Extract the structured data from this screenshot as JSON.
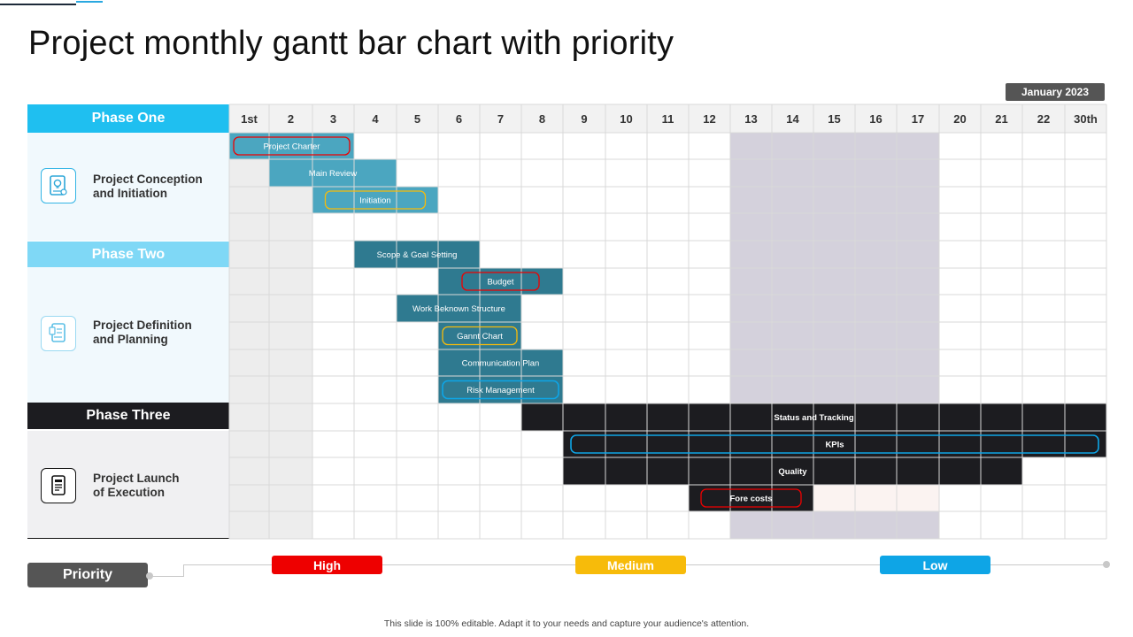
{
  "title": "Project monthly gantt bar chart with priority",
  "month_label": "January  2023",
  "footer": "This slide is 100% editable. Adapt it to your needs and capture your audience's attention.",
  "phases": [
    {
      "name": "Phase One",
      "label_line1": "Project Conception",
      "label_line2": "and Initiation",
      "header_color": "#1fbff0",
      "body_color": "#f1f9fd",
      "icon": "lightbulb-document-icon"
    },
    {
      "name": "Phase Two",
      "label_line1": "Project Definition",
      "label_line2": "and Planning",
      "header_color": "#7fd8f6",
      "body_color": "#f1f9fd",
      "icon": "planning-document-icon"
    },
    {
      "name": "Phase Three",
      "label_line1": "Project Launch",
      "label_line2": "of Execution",
      "header_color": "#1c1c20",
      "body_color": "#f0f0f2",
      "icon": "launch-document-icon"
    }
  ],
  "priority": {
    "label": "Priority",
    "levels": [
      {
        "name": "High",
        "color": "#ee0000"
      },
      {
        "name": "Medium",
        "color": "#f7bb0a"
      },
      {
        "name": "Low",
        "color": "#0ea5e6"
      }
    ]
  },
  "colors": {
    "grid_line": "#d9d9d9",
    "header_bg": "#f2f2f2",
    "shade_grey": "#ededed",
    "shade_lavender": "#d4d1dc",
    "shade_pink": "#fbf3f1"
  },
  "chart_data": {
    "type": "gantt",
    "title": "Project monthly gantt bar chart with priority",
    "period": "January 2023",
    "days": [
      "1st",
      "2",
      "3",
      "4",
      "5",
      "6",
      "7",
      "8",
      "9",
      "10",
      "11",
      "12",
      "13",
      "14",
      "15",
      "16",
      "17",
      "20",
      "21",
      "22",
      "30th"
    ],
    "rows": 15,
    "tasks": [
      {
        "name": "Project Charter",
        "row": 0,
        "start": "1st",
        "end": "3",
        "color": "#4ba6c0",
        "priority": "High"
      },
      {
        "name": "Main Review",
        "row": 1,
        "start": "2",
        "end": "4",
        "color": "#4ba6c0",
        "priority": null
      },
      {
        "name": "Initiation",
        "row": 2,
        "start": "3",
        "end": "5",
        "color": "#4ba6c0",
        "priority": "Medium"
      },
      {
        "name": "Scope & Goal Setting",
        "row": 4,
        "start": "4",
        "end": "6",
        "color": "#2f7a90",
        "priority": null
      },
      {
        "name": "Budget",
        "row": 5,
        "start": "6",
        "end": "8",
        "color": "#2f7a90",
        "priority": "High"
      },
      {
        "name": "Work Beknown Structure",
        "row": 6,
        "start": "5",
        "end": "7",
        "color": "#2f7a90",
        "priority": null
      },
      {
        "name": "Gannt Chart",
        "row": 7,
        "start": "6",
        "end": "7",
        "color": "#2f7a90",
        "priority": "Medium"
      },
      {
        "name": "Communication Plan",
        "row": 8,
        "start": "6",
        "end": "8",
        "color": "#2f7a90",
        "priority": null
      },
      {
        "name": "Risk Management",
        "row": 9,
        "start": "6",
        "end": "8",
        "color": "#2f7a90",
        "priority": "Low"
      },
      {
        "name": "Status and  Tracking",
        "row": 10,
        "start": "8",
        "end": "30th",
        "color": "#1c1c20",
        "priority": null
      },
      {
        "name": "KPIs",
        "row": 11,
        "start": "9",
        "end": "30th",
        "color": "#1c1c20",
        "priority": "Low"
      },
      {
        "name": "Quality",
        "row": 12,
        "start": "9",
        "end": "21",
        "color": "#1c1c20",
        "priority": null
      },
      {
        "name": "Fore costs",
        "row": 13,
        "start": "12",
        "end": "14",
        "color": "#1c1c20",
        "priority": "High"
      }
    ],
    "shaded_regions": [
      {
        "days": [
          "1st",
          "2"
        ],
        "rows": [
          0,
          14
        ],
        "style": "grey"
      },
      {
        "days": [
          "13",
          "17"
        ],
        "rows": [
          0,
          9
        ],
        "style": "lavender"
      },
      {
        "days": [
          "13",
          "17"
        ],
        "rows": [
          14,
          14
        ],
        "style": "lavender"
      },
      {
        "days": [
          "15",
          "17"
        ],
        "rows": [
          13,
          13
        ],
        "style": "pink"
      }
    ]
  }
}
